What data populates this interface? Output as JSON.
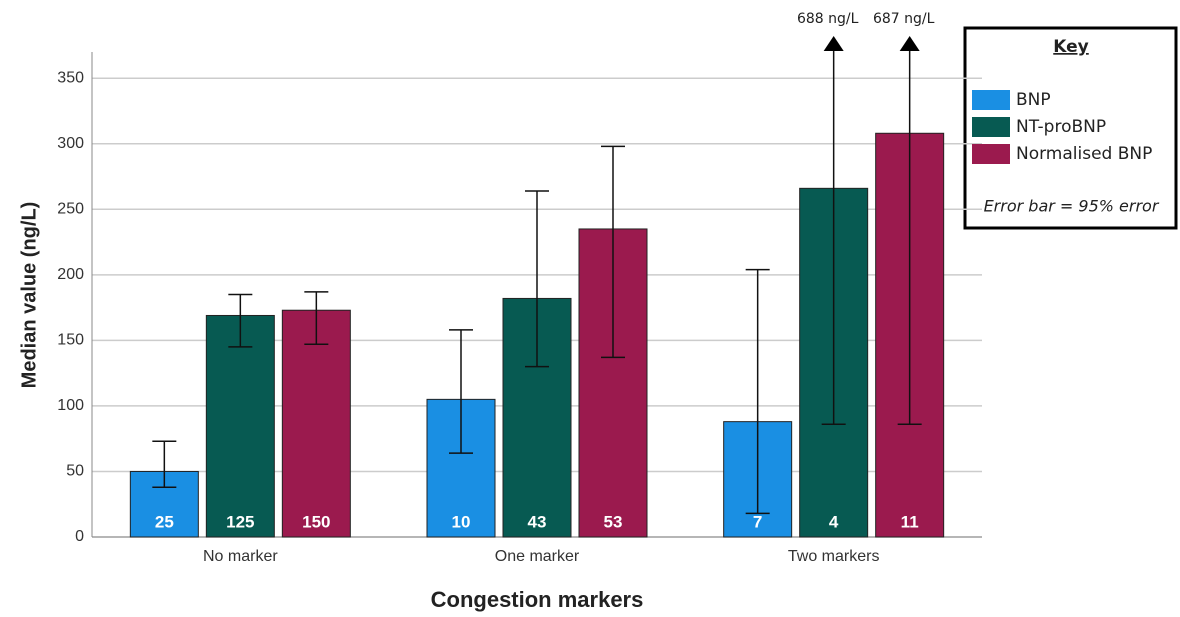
{
  "chart_data": {
    "type": "bar",
    "y_label": "Median value (ng/L)",
    "x_label": "Congestion markers",
    "categories": [
      "No marker",
      "One marker",
      "Two markers"
    ],
    "ylim": [
      0,
      370
    ],
    "yticks": [
      0,
      50,
      100,
      150,
      200,
      250,
      300,
      350
    ],
    "grid": true,
    "legend_title": "Key",
    "legend_note": "Error bar = 95% error",
    "legend_position": "upper right",
    "series": [
      {
        "name": "BNP",
        "color": "#1a8fe3",
        "values": [
          50,
          105,
          88
        ],
        "error_low": [
          38,
          64,
          18
        ],
        "error_high": [
          73,
          158,
          204
        ],
        "error_high_labels": [
          null,
          null,
          null
        ],
        "n": [
          25,
          10,
          7
        ]
      },
      {
        "name": "NT-proBNP",
        "color": "#075a52",
        "values": [
          169,
          182,
          266
        ],
        "error_low": [
          145,
          130,
          86
        ],
        "error_high": [
          185,
          264,
          688
        ],
        "error_high_labels": [
          null,
          null,
          "688 ng/L"
        ],
        "n": [
          125,
          43,
          4
        ]
      },
      {
        "name": "Normalised BNP",
        "color": "#9b1a4e",
        "values": [
          173,
          235,
          308
        ],
        "error_low": [
          147,
          137,
          86
        ],
        "error_high": [
          187,
          298,
          687
        ],
        "error_high_labels": [
          null,
          null,
          "687 ng/L"
        ],
        "n": [
          150,
          53,
          11
        ]
      }
    ]
  }
}
